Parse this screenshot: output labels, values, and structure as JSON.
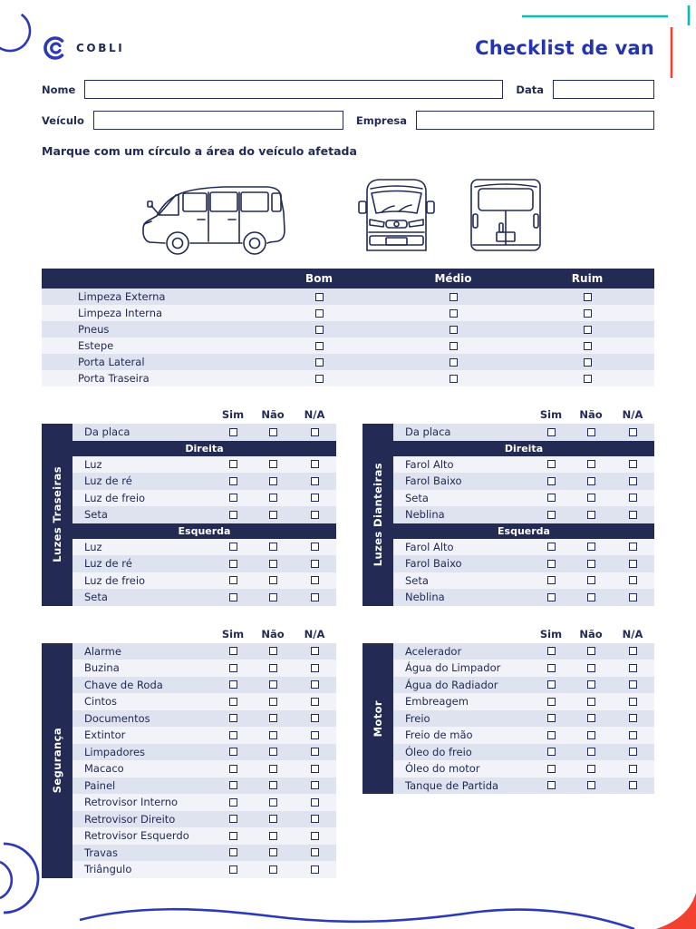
{
  "header": {
    "brand": "COBLI",
    "title": "Checklist de van"
  },
  "form": {
    "nome": "Nome",
    "data": "Data",
    "veiculo": "Veículo",
    "empresa": "Empresa"
  },
  "instruction": "Marque com um círculo a área do veículo afetada",
  "condition_table": {
    "headers": [
      "Bom",
      "Médio",
      "Ruim"
    ],
    "rows": [
      "Limpeza Externa",
      "Limpeza Interna",
      "Pneus",
      "Estepe",
      "Porta Lateral",
      "Porta Traseira"
    ]
  },
  "check_headers": [
    "Sim",
    "Não",
    "N/A"
  ],
  "tables": [
    {
      "side_label": "Luzes Traseiras",
      "rows": [
        {
          "t": "item",
          "label": "Da placa"
        },
        {
          "t": "section",
          "label": "Direita"
        },
        {
          "t": "item",
          "label": "Luz"
        },
        {
          "t": "item",
          "label": "Luz de ré"
        },
        {
          "t": "item",
          "label": "Luz de freio"
        },
        {
          "t": "item",
          "label": "Seta"
        },
        {
          "t": "section",
          "label": "Esquerda"
        },
        {
          "t": "item",
          "label": "Luz"
        },
        {
          "t": "item",
          "label": "Luz de ré"
        },
        {
          "t": "item",
          "label": "Luz de freio"
        },
        {
          "t": "item",
          "label": "Seta"
        }
      ]
    },
    {
      "side_label": "Luzes Dianteiras",
      "rows": [
        {
          "t": "item",
          "label": "Da placa"
        },
        {
          "t": "section",
          "label": "Direita"
        },
        {
          "t": "item",
          "label": "Farol Alto"
        },
        {
          "t": "item",
          "label": "Farol Baixo"
        },
        {
          "t": "item",
          "label": "Seta"
        },
        {
          "t": "item",
          "label": "Neblina"
        },
        {
          "t": "section",
          "label": "Esquerda"
        },
        {
          "t": "item",
          "label": "Farol Alto"
        },
        {
          "t": "item",
          "label": "Farol Baixo"
        },
        {
          "t": "item",
          "label": "Seta"
        },
        {
          "t": "item",
          "label": "Neblina"
        }
      ]
    },
    {
      "side_label": "Segurança",
      "rows": [
        {
          "t": "item",
          "label": "Alarme"
        },
        {
          "t": "item",
          "label": "Buzina"
        },
        {
          "t": "item",
          "label": "Chave de Roda"
        },
        {
          "t": "item",
          "label": "Cintos"
        },
        {
          "t": "item",
          "label": "Documentos"
        },
        {
          "t": "item",
          "label": "Extintor"
        },
        {
          "t": "item",
          "label": "Limpadores"
        },
        {
          "t": "item",
          "label": "Macaco"
        },
        {
          "t": "item",
          "label": "Painel"
        },
        {
          "t": "item",
          "label": "Retrovisor Interno"
        },
        {
          "t": "item",
          "label": "Retrovisor Direito"
        },
        {
          "t": "item",
          "label": "Retrovisor Esquerdo"
        },
        {
          "t": "item",
          "label": "Travas"
        },
        {
          "t": "item",
          "label": "Triângulo"
        }
      ]
    },
    {
      "side_label": "Motor",
      "rows": [
        {
          "t": "item",
          "label": "Acelerador"
        },
        {
          "t": "item",
          "label": "Água do Limpador"
        },
        {
          "t": "item",
          "label": "Água do Radiador"
        },
        {
          "t": "item",
          "label": "Embreagem"
        },
        {
          "t": "item",
          "label": "Freio"
        },
        {
          "t": "item",
          "label": "Freio de mão"
        },
        {
          "t": "item",
          "label": "Óleo do freio"
        },
        {
          "t": "item",
          "label": "Óleo do motor"
        },
        {
          "t": "item",
          "label": "Tanque de Partida"
        }
      ]
    }
  ],
  "colors": {
    "navy": "#232a54",
    "blue": "#2d3ab8",
    "title_blue": "#2433ae",
    "teal": "#00c2b3",
    "red": "#f4402e",
    "row_tint": "#dfe3f0",
    "row_tint_light": "#f1f3f9"
  }
}
